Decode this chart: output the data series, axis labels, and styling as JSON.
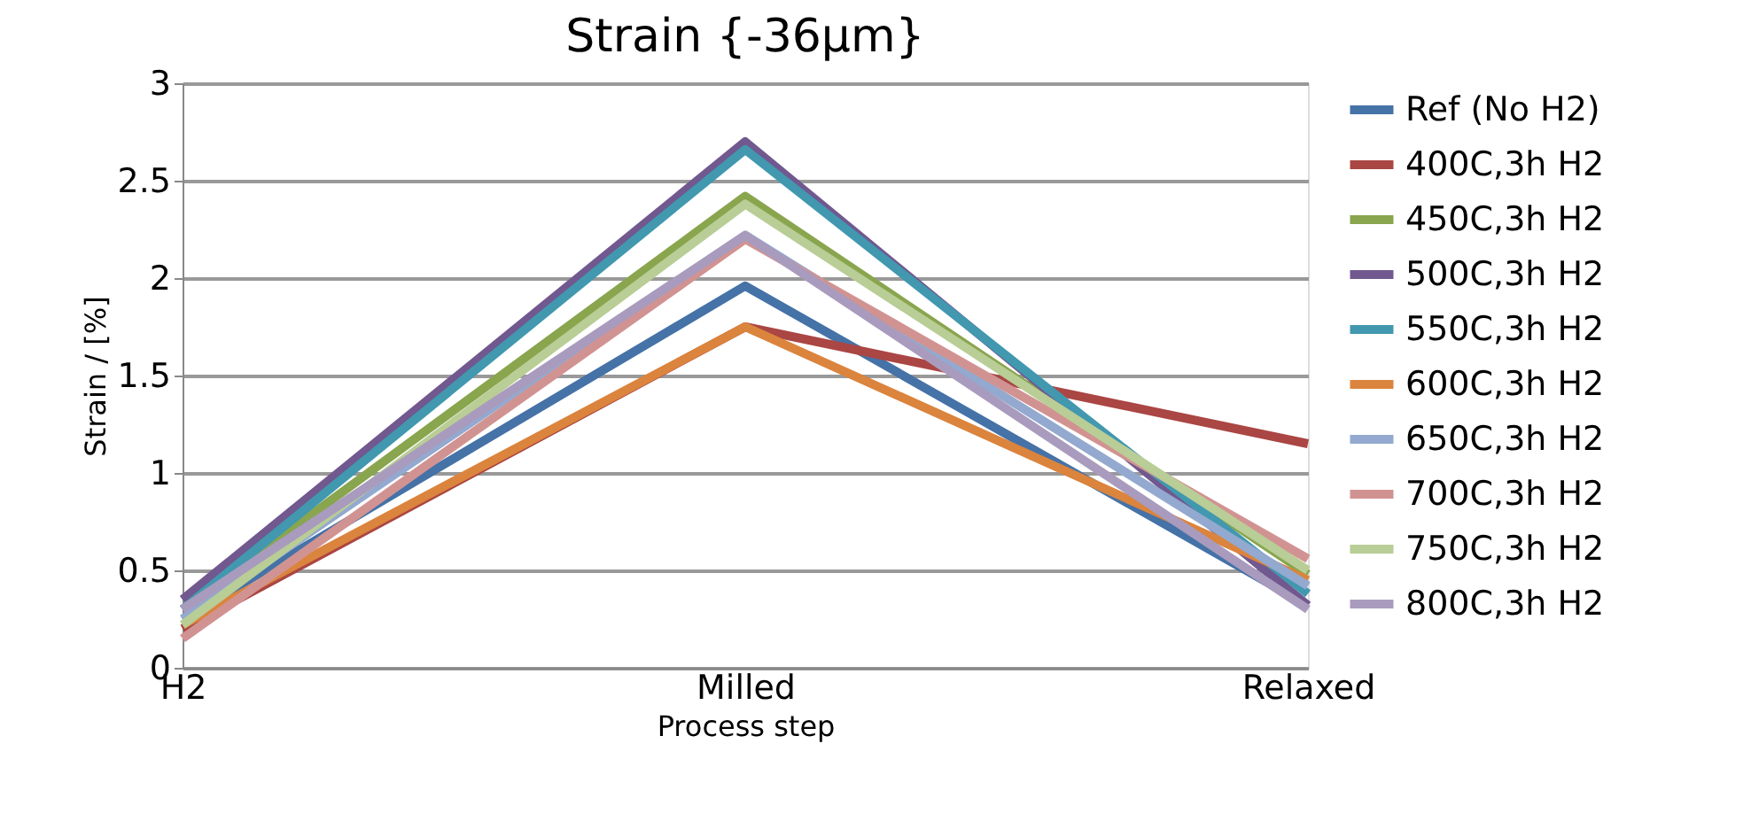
{
  "chart_data": {
    "type": "line",
    "title": "Strain {-36µm}",
    "xlabel": "Process step",
    "ylabel": "Strain / [%]",
    "categories": [
      "H2",
      "Milled",
      "Relaxed"
    ],
    "series": [
      {
        "name": "Ref (No H2)",
        "color": "#4572a7",
        "values": [
          0.25,
          1.96,
          0.32
        ]
      },
      {
        "name": "400C,3h H2",
        "color": "#aa4643",
        "values": [
          0.2,
          1.75,
          1.15
        ]
      },
      {
        "name": "450C,3h H2",
        "color": "#89a54e",
        "values": [
          0.3,
          2.42,
          0.48
        ]
      },
      {
        "name": "500C,3h H2",
        "color": "#71588f",
        "values": [
          0.35,
          2.7,
          0.32
        ]
      },
      {
        "name": "550C,3h H2",
        "color": "#4198af",
        "values": [
          0.3,
          2.66,
          0.38
        ]
      },
      {
        "name": "600C,3h H2",
        "color": "#db843d",
        "values": [
          0.22,
          1.75,
          0.45
        ]
      },
      {
        "name": "650C,3h H2",
        "color": "#93a9cf",
        "values": [
          0.25,
          2.22,
          0.42
        ]
      },
      {
        "name": "700C,3h H2",
        "color": "#d19392",
        "values": [
          0.15,
          2.2,
          0.56
        ]
      },
      {
        "name": "750C,3h H2",
        "color": "#b9cd96",
        "values": [
          0.22,
          2.38,
          0.5
        ]
      },
      {
        "name": "800C,3h H2",
        "color": "#a99bbd",
        "values": [
          0.3,
          2.22,
          0.3
        ]
      }
    ],
    "ylim": [
      0,
      3
    ],
    "yticks": [
      0,
      0.5,
      1,
      1.5,
      2,
      2.5,
      3
    ],
    "grid": "y",
    "legend": "right",
    "marker": "none",
    "line_style": "solid"
  }
}
